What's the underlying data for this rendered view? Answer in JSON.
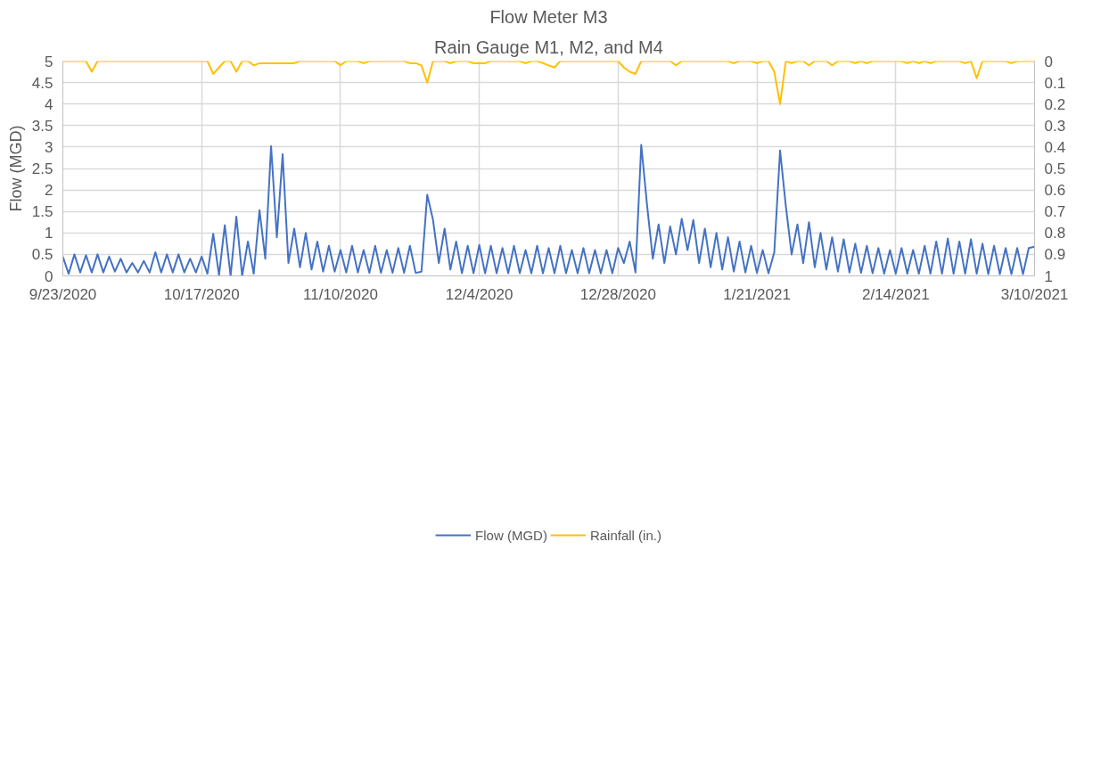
{
  "chart_data": {
    "type": "line",
    "title": "Flow Meter M3",
    "subtitle": "Rain Gauge M1, M2, and M4",
    "ylabel": "Flow (MGD)",
    "x": [
      "2020-09-23",
      "2020-09-24",
      "2020-09-25",
      "2020-09-26",
      "2020-09-27",
      "2020-09-28",
      "2020-09-29",
      "2020-09-30",
      "2020-10-01",
      "2020-10-02",
      "2020-10-03",
      "2020-10-04",
      "2020-10-05",
      "2020-10-06",
      "2020-10-07",
      "2020-10-08",
      "2020-10-09",
      "2020-10-10",
      "2020-10-11",
      "2020-10-12",
      "2020-10-13",
      "2020-10-14",
      "2020-10-15",
      "2020-10-16",
      "2020-10-17",
      "2020-10-18",
      "2020-10-19",
      "2020-10-20",
      "2020-10-21",
      "2020-10-22",
      "2020-10-23",
      "2020-10-24",
      "2020-10-25",
      "2020-10-26",
      "2020-10-27",
      "2020-10-28",
      "2020-10-29",
      "2020-10-30",
      "2020-10-31",
      "2020-11-01",
      "2020-11-02",
      "2020-11-03",
      "2020-11-04",
      "2020-11-05",
      "2020-11-06",
      "2020-11-07",
      "2020-11-08",
      "2020-11-09",
      "2020-11-10",
      "2020-11-11",
      "2020-11-12",
      "2020-11-13",
      "2020-11-14",
      "2020-11-15",
      "2020-11-16",
      "2020-11-17",
      "2020-11-18",
      "2020-11-19",
      "2020-11-20",
      "2020-11-21",
      "2020-11-22",
      "2020-11-23",
      "2020-11-24",
      "2020-11-25",
      "2020-11-26",
      "2020-11-27",
      "2020-11-28",
      "2020-11-29",
      "2020-11-30",
      "2020-12-01",
      "2020-12-02",
      "2020-12-03",
      "2020-12-04",
      "2020-12-05",
      "2020-12-06",
      "2020-12-07",
      "2020-12-08",
      "2020-12-09",
      "2020-12-10",
      "2020-12-11",
      "2020-12-12",
      "2020-12-13",
      "2020-12-14",
      "2020-12-15",
      "2020-12-16",
      "2020-12-17",
      "2020-12-18",
      "2020-12-19",
      "2020-12-20",
      "2020-12-21",
      "2020-12-22",
      "2020-12-23",
      "2020-12-24",
      "2020-12-25",
      "2020-12-26",
      "2020-12-27",
      "2020-12-28",
      "2020-12-29",
      "2020-12-30",
      "2020-12-31",
      "2021-01-01",
      "2021-01-02",
      "2021-01-03",
      "2021-01-04",
      "2021-01-05",
      "2021-01-06",
      "2021-01-07",
      "2021-01-08",
      "2021-01-09",
      "2021-01-10",
      "2021-01-11",
      "2021-01-12",
      "2021-01-13",
      "2021-01-14",
      "2021-01-15",
      "2021-01-16",
      "2021-01-17",
      "2021-01-18",
      "2021-01-19",
      "2021-01-20",
      "2021-01-21",
      "2021-01-22",
      "2021-01-23",
      "2021-01-24",
      "2021-01-25",
      "2021-01-26",
      "2021-01-27",
      "2021-01-28",
      "2021-01-29",
      "2021-01-30",
      "2021-01-31",
      "2021-02-01",
      "2021-02-02",
      "2021-02-03",
      "2021-02-04",
      "2021-02-05",
      "2021-02-06",
      "2021-02-07",
      "2021-02-08",
      "2021-02-09",
      "2021-02-10",
      "2021-02-11",
      "2021-02-12",
      "2021-02-13",
      "2021-02-14",
      "2021-02-15",
      "2021-02-16",
      "2021-02-17",
      "2021-02-18",
      "2021-02-19",
      "2021-02-20",
      "2021-02-21",
      "2021-02-22",
      "2021-02-23",
      "2021-02-24",
      "2021-02-25",
      "2021-02-26",
      "2021-02-27",
      "2021-02-28",
      "2021-03-01",
      "2021-03-02",
      "2021-03-03",
      "2021-03-04",
      "2021-03-05",
      "2021-03-06",
      "2021-03-07",
      "2021-03-08",
      "2021-03-09",
      "2021-03-10"
    ],
    "series": [
      {
        "name": "Flow (MGD)",
        "color": "#4472c4",
        "values": [
          0.45,
          0.05,
          0.5,
          0.08,
          0.48,
          0.08,
          0.5,
          0.08,
          0.45,
          0.1,
          0.4,
          0.08,
          0.3,
          0.08,
          0.35,
          0.08,
          0.55,
          0.08,
          0.5,
          0.08,
          0.5,
          0.08,
          0.4,
          0.08,
          0.45,
          0.05,
          0.98,
          0.02,
          1.18,
          0.0,
          1.38,
          0.0,
          0.8,
          0.05,
          1.53,
          0.4,
          3.02,
          0.9,
          2.83,
          0.3,
          1.1,
          0.2,
          1.0,
          0.15,
          0.8,
          0.1,
          0.7,
          0.1,
          0.6,
          0.08,
          0.7,
          0.08,
          0.6,
          0.07,
          0.7,
          0.07,
          0.6,
          0.07,
          0.65,
          0.07,
          0.7,
          0.07,
          0.1,
          1.89,
          1.3,
          0.3,
          1.1,
          0.15,
          0.8,
          0.06,
          0.7,
          0.06,
          0.72,
          0.06,
          0.7,
          0.06,
          0.65,
          0.06,
          0.7,
          0.06,
          0.6,
          0.06,
          0.7,
          0.06,
          0.65,
          0.06,
          0.7,
          0.06,
          0.6,
          0.06,
          0.65,
          0.06,
          0.6,
          0.06,
          0.6,
          0.06,
          0.65,
          0.3,
          0.8,
          0.08,
          3.05,
          1.65,
          0.4,
          1.2,
          0.3,
          1.15,
          0.5,
          1.33,
          0.6,
          1.3,
          0.3,
          1.1,
          0.2,
          1.0,
          0.15,
          0.9,
          0.1,
          0.8,
          0.08,
          0.7,
          0.07,
          0.6,
          0.06,
          0.55,
          2.92,
          1.62,
          0.5,
          1.2,
          0.3,
          1.25,
          0.2,
          1.0,
          0.15,
          0.9,
          0.1,
          0.85,
          0.08,
          0.75,
          0.07,
          0.7,
          0.06,
          0.65,
          0.05,
          0.6,
          0.05,
          0.65,
          0.05,
          0.6,
          0.05,
          0.7,
          0.05,
          0.8,
          0.05,
          0.87,
          0.05,
          0.8,
          0.05,
          0.85,
          0.05,
          0.75,
          0.04,
          0.7,
          0.04,
          0.65,
          0.04,
          0.65,
          0.04,
          0.65,
          0.68
        ]
      },
      {
        "name": "Rainfall (in.)",
        "color": "#ffc000",
        "axis": "y2",
        "values": [
          0,
          0,
          0,
          0,
          0,
          0.05,
          0,
          0,
          0,
          0,
          0,
          0,
          0,
          0,
          0,
          0,
          0,
          0,
          0,
          0,
          0,
          0,
          0,
          0,
          0,
          0,
          0.06,
          0.03,
          0,
          0,
          0.05,
          0,
          0,
          0.02,
          0.01,
          0.01,
          0.01,
          0.01,
          0.01,
          0.01,
          0.01,
          0,
          0,
          0,
          0,
          0,
          0,
          0,
          0.02,
          0,
          0,
          0,
          0.01,
          0,
          0,
          0,
          0,
          0,
          0,
          0,
          0.01,
          0.01,
          0.02,
          0.1,
          0,
          0,
          0,
          0.01,
          0,
          0,
          0,
          0.01,
          0.01,
          0.01,
          0,
          0,
          0,
          0,
          0,
          0,
          0.01,
          0,
          0,
          0.01,
          0.02,
          0.03,
          0,
          0,
          0,
          0,
          0,
          0,
          0,
          0,
          0,
          0,
          0,
          0.03,
          0.05,
          0.06,
          0,
          0,
          0,
          0,
          0,
          0,
          0.02,
          0,
          0,
          0,
          0,
          0,
          0,
          0,
          0,
          0,
          0.01,
          0,
          0,
          0,
          0.01,
          0,
          0,
          0.05,
          0.2,
          0,
          0.01,
          0,
          0,
          0.02,
          0,
          0,
          0,
          0.02,
          0,
          0,
          0,
          0.01,
          0,
          0.01,
          0,
          0,
          0,
          0,
          0,
          0,
          0.01,
          0,
          0.01,
          0,
          0.01,
          0,
          0,
          0,
          0,
          0,
          0.01,
          0,
          0.08,
          0,
          0,
          0,
          0,
          0,
          0.01,
          0,
          0,
          0,
          0
        ]
      }
    ],
    "xlim": [
      "2020-09-23",
      "2021-03-10"
    ],
    "xticks": [
      {
        "value": "2020-09-23",
        "label": "9/23/2020"
      },
      {
        "value": "2020-10-17",
        "label": "10/17/2020"
      },
      {
        "value": "2020-11-10",
        "label": "11/10/2020"
      },
      {
        "value": "2020-12-04",
        "label": "12/4/2020"
      },
      {
        "value": "2020-12-28",
        "label": "12/28/2020"
      },
      {
        "value": "2021-01-21",
        "label": "1/21/2021"
      },
      {
        "value": "2021-02-14",
        "label": "2/14/2021"
      },
      {
        "value": "2021-03-10",
        "label": "3/10/2021"
      }
    ],
    "ylim": [
      0,
      5
    ],
    "yticks": [
      0,
      0.5,
      1,
      1.5,
      2,
      2.5,
      3,
      3.5,
      4,
      4.5,
      5
    ],
    "y2lim": [
      1,
      0
    ],
    "y2ticks": [
      0,
      0.1,
      0.2,
      0.3,
      0.4,
      0.5,
      0.6,
      0.7,
      0.8,
      0.9,
      1
    ],
    "grid": true,
    "legend": "bottom"
  }
}
